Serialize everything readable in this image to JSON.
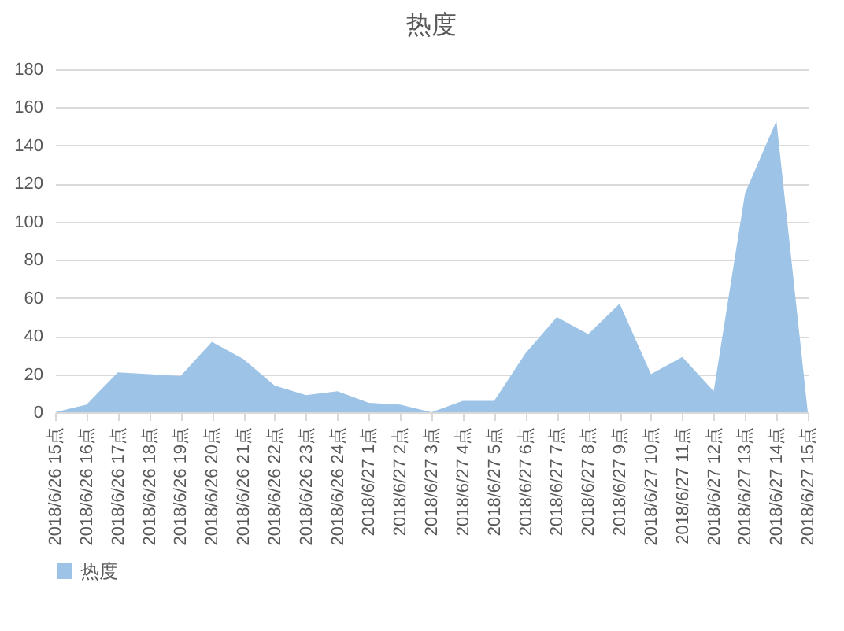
{
  "chart_data": {
    "type": "area",
    "title": "热度",
    "categories": [
      "2018/6/26 15点",
      "2018/6/26 16点",
      "2018/6/26 17点",
      "2018/6/26 18点",
      "2018/6/26 19点",
      "2018/6/26 20点",
      "2018/6/26 21点",
      "2018/6/26 22点",
      "2018/6/26 23点",
      "2018/6/26 24点",
      "2018/6/27 1点",
      "2018/6/27 2点",
      "2018/6/27 3点",
      "2018/6/27 4点",
      "2018/6/27 5点",
      "2018/6/27 6点",
      "2018/6/27 7点",
      "2018/6/27 8点",
      "2018/6/27 9点",
      "2018/6/27 10点",
      "2018/6/27 11点",
      "2018/6/27 12点",
      "2018/6/27 13点",
      "2018/6/27 14点",
      "2018/6/27 15点"
    ],
    "series": [
      {
        "name": "热度",
        "color": "#9dc3e6",
        "values": [
          0,
          4,
          21,
          20,
          19,
          37,
          28,
          14,
          9,
          11,
          5,
          4,
          0,
          6,
          6,
          31,
          50,
          41,
          57,
          20,
          29,
          11,
          115,
          153,
          0
        ]
      }
    ],
    "ylim": [
      0,
      180
    ],
    "yticks": [
      0,
      20,
      40,
      60,
      80,
      100,
      120,
      140,
      160,
      180
    ],
    "grid": "y",
    "legend": "bottom"
  }
}
